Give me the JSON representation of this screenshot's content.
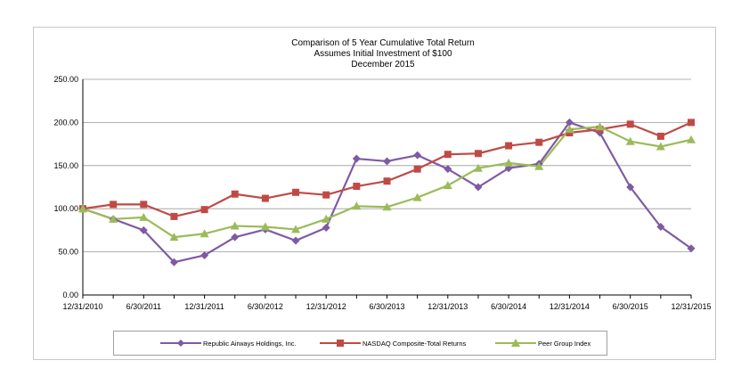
{
  "chart_data": {
    "type": "line",
    "title": "Comparison of 5 Year Cumulative Total Return",
    "subtitle_1": "Assumes Initial Investment of $100",
    "subtitle_2": "December 2015",
    "xlabel": "",
    "ylabel": "",
    "ylim": [
      0,
      250
    ],
    "y_ticks": [
      "0.00",
      "50.00",
      "100.00",
      "150.00",
      "200.00",
      "250.00"
    ],
    "y_tick_values": [
      0,
      50,
      100,
      150,
      200,
      250
    ],
    "x": [
      "12/31/2010",
      "3/31/2011",
      "6/30/2011",
      "9/30/2011",
      "12/31/2011",
      "3/31/2012",
      "6/30/2012",
      "9/30/2012",
      "12/31/2012",
      "3/31/2013",
      "6/30/2013",
      "9/30/2013",
      "12/31/2013",
      "3/31/2014",
      "6/30/2014",
      "9/30/2014",
      "12/31/2014",
      "3/31/2015",
      "6/30/2015",
      "9/30/2015",
      "12/31/2015"
    ],
    "x_tick_labels": [
      "12/31/2010",
      "6/30/2011",
      "12/31/2011",
      "6/30/2012",
      "12/31/2012",
      "6/30/2013",
      "12/31/2013",
      "6/30/2014",
      "12/31/2014",
      "6/30/2015",
      "12/31/2015"
    ],
    "grid": true,
    "legend_position": "bottom",
    "series": [
      {
        "name": "Republic Airways Holdings, Inc.",
        "color": "#7f5aa3",
        "marker": "diamond",
        "values": [
          100,
          88,
          75,
          38,
          46,
          67,
          76,
          63,
          78,
          158,
          155,
          162,
          146,
          125,
          147,
          152,
          200,
          188,
          125,
          79,
          54
        ]
      },
      {
        "name": "NASDAQ Composite-Total Returns",
        "color": "#bf4a45",
        "marker": "square",
        "values": [
          100,
          105,
          105,
          91,
          99,
          117,
          112,
          119,
          116,
          126,
          132,
          146,
          163,
          164,
          173,
          177,
          188,
          192,
          198,
          184,
          200
        ]
      },
      {
        "name": "Peer Group Index",
        "color": "#9bbb59",
        "marker": "triangle",
        "values": [
          100,
          88,
          90,
          67,
          71,
          80,
          79,
          76,
          88,
          103,
          102,
          113,
          127,
          147,
          153,
          149,
          192,
          195,
          178,
          172,
          180
        ]
      }
    ]
  }
}
